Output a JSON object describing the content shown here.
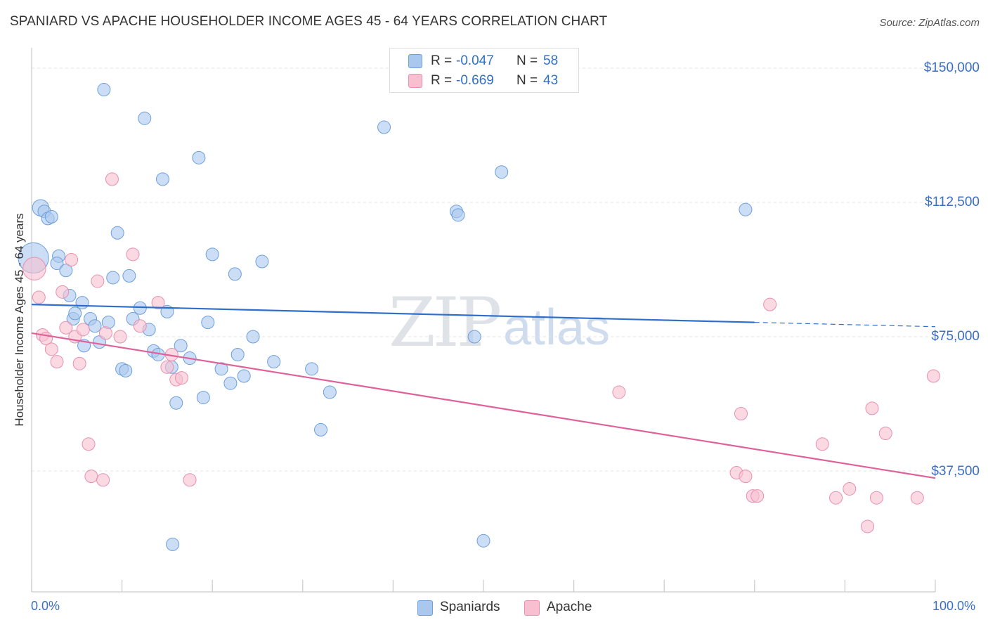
{
  "title": "SPANIARD VS APACHE HOUSEHOLDER INCOME AGES 45 - 64 YEARS CORRELATION CHART",
  "source": "Source: ZipAtlas.com",
  "watermark": {
    "zip": "ZIP",
    "atlas": "atlas"
  },
  "colors": {
    "spaniards": "#aac8ee",
    "spaniards_stroke": "#6c9fdc",
    "spaniards_line": "#2f6fcc",
    "apache": "#f7bfd0",
    "apache_stroke": "#e98fb0",
    "apache_line": "#e0609a",
    "axis_text": "#3a6fc4",
    "grid": "#e3e3e3"
  },
  "legend": {
    "spaniards": {
      "r_label": "R =",
      "r_value": "-0.047",
      "n_label": "N =",
      "n_value": "58"
    },
    "apache": {
      "r_label": "R =",
      "r_value": "-0.669",
      "n_label": "N =",
      "n_value": "43"
    }
  },
  "bottom_legend": {
    "spaniards": "Spaniards",
    "apache": "Apache"
  },
  "chart_data": {
    "type": "scatter",
    "title": "SPANIARD VS APACHE HOUSEHOLDER INCOME AGES 45 - 64 YEARS CORRELATION CHART",
    "xlabel": "",
    "ylabel": "Householder Income Ages 45 - 64 years",
    "xlim": [
      0,
      100
    ],
    "ylim": [
      0,
      155000
    ],
    "x_tick_labels": [
      "0.0%",
      "100.0%"
    ],
    "y_ticks": [
      {
        "value": 150000,
        "label": "$150,000"
      },
      {
        "value": 112500,
        "label": "$112,500"
      },
      {
        "value": 75000,
        "label": "$75,000"
      },
      {
        "value": 37500,
        "label": "$37,500"
      }
    ],
    "series": [
      {
        "name": "Spaniards",
        "trend": {
          "x0": 0,
          "y0": 84000,
          "x1": 80,
          "y1": 79000,
          "x_dash_end": 100,
          "y_dash_end": 77800
        },
        "points": [
          [
            0.2,
            97000,
            2.4
          ],
          [
            1.0,
            111000,
            1.3
          ],
          [
            1.4,
            110000,
            1.0
          ],
          [
            1.8,
            108000,
            1.0
          ],
          [
            2.2,
            108500,
            1.0
          ],
          [
            3.0,
            97500,
            1.0
          ],
          [
            2.8,
            95500,
            1.0
          ],
          [
            3.8,
            93500,
            1.0
          ],
          [
            4.2,
            86500,
            1.0
          ],
          [
            4.6,
            80000,
            1.0
          ],
          [
            4.8,
            81500,
            1.0
          ],
          [
            5.6,
            84500,
            1.0
          ],
          [
            5.8,
            72500,
            1.0
          ],
          [
            6.5,
            80000,
            1.0
          ],
          [
            7.0,
            78000,
            1.0
          ],
          [
            7.5,
            73500,
            1.0
          ],
          [
            8.0,
            144000,
            1.0
          ],
          [
            9.0,
            91500,
            1.0
          ],
          [
            8.5,
            79000,
            1.0
          ],
          [
            9.5,
            104000,
            1.0
          ],
          [
            10.0,
            66000,
            1.0
          ],
          [
            10.4,
            65500,
            1.0
          ],
          [
            10.8,
            92000,
            1.0
          ],
          [
            11.2,
            80000,
            1.0
          ],
          [
            12.0,
            83000,
            1.0
          ],
          [
            12.5,
            136000,
            1.0
          ],
          [
            13.0,
            77000,
            1.0
          ],
          [
            13.5,
            71000,
            1.0
          ],
          [
            14.0,
            70000,
            1.0
          ],
          [
            14.5,
            119000,
            1.0
          ],
          [
            15.0,
            82000,
            1.0
          ],
          [
            15.5,
            66500,
            1.0
          ],
          [
            16.0,
            56500,
            1.0
          ],
          [
            16.5,
            72500,
            1.0
          ],
          [
            17.5,
            69000,
            1.0
          ],
          [
            18.5,
            125000,
            1.0
          ],
          [
            19.0,
            58000,
            1.0
          ],
          [
            19.5,
            79000,
            1.0
          ],
          [
            20.0,
            98000,
            1.0
          ],
          [
            21.0,
            66000,
            1.0
          ],
          [
            22.0,
            62000,
            1.0
          ],
          [
            22.5,
            92500,
            1.0
          ],
          [
            22.8,
            70000,
            1.0
          ],
          [
            23.5,
            64000,
            1.0
          ],
          [
            24.5,
            75000,
            1.0
          ],
          [
            25.5,
            96000,
            1.0
          ],
          [
            26.8,
            68000,
            1.0
          ],
          [
            31.0,
            66000,
            1.0
          ],
          [
            32.0,
            49000,
            1.0
          ],
          [
            33.0,
            59500,
            1.0
          ],
          [
            39.0,
            133500,
            1.0
          ],
          [
            47.0,
            110000,
            1.0
          ],
          [
            47.2,
            109000,
            1.0
          ],
          [
            49.0,
            75000,
            1.0
          ],
          [
            50.0,
            18000,
            1.0
          ],
          [
            52.0,
            121000,
            1.0
          ],
          [
            79.0,
            110500,
            1.0
          ],
          [
            15.6,
            17000,
            1.0
          ]
        ]
      },
      {
        "name": "Apache",
        "trend": {
          "x0": 0,
          "y0": 76000,
          "x1": 100,
          "y1": 35500
        },
        "points": [
          [
            0.3,
            94000,
            1.8
          ],
          [
            0.8,
            86000,
            1.0
          ],
          [
            1.2,
            75500,
            1.0
          ],
          [
            1.6,
            74500,
            1.0
          ],
          [
            2.2,
            71500,
            1.0
          ],
          [
            2.8,
            68000,
            1.0
          ],
          [
            3.4,
            87500,
            1.0
          ],
          [
            3.8,
            77500,
            1.0
          ],
          [
            4.4,
            96500,
            1.0
          ],
          [
            4.8,
            75000,
            1.0
          ],
          [
            5.3,
            67500,
            1.0
          ],
          [
            5.7,
            77000,
            1.0
          ],
          [
            6.3,
            45000,
            1.0
          ],
          [
            6.6,
            36000,
            1.0
          ],
          [
            7.3,
            90500,
            1.0
          ],
          [
            7.9,
            35000,
            1.0
          ],
          [
            8.2,
            76000,
            1.0
          ],
          [
            8.9,
            119000,
            1.0
          ],
          [
            9.8,
            75000,
            1.0
          ],
          [
            11.2,
            98000,
            1.0
          ],
          [
            12.0,
            78000,
            1.0
          ],
          [
            14.0,
            84500,
            1.0
          ],
          [
            15.0,
            66500,
            1.0
          ],
          [
            15.5,
            70000,
            1.0
          ],
          [
            16.0,
            63000,
            1.0
          ],
          [
            16.6,
            63500,
            1.0
          ],
          [
            17.5,
            35000,
            1.0
          ],
          [
            65.0,
            59500,
            1.0
          ],
          [
            78.0,
            37000,
            1.0
          ],
          [
            78.5,
            53500,
            1.0
          ],
          [
            79.0,
            36000,
            1.0
          ],
          [
            79.8,
            30500,
            1.0
          ],
          [
            80.3,
            30500,
            1.0
          ],
          [
            81.7,
            84000,
            1.0
          ],
          [
            87.5,
            45000,
            1.0
          ],
          [
            89.0,
            30000,
            1.0
          ],
          [
            90.5,
            32500,
            1.0
          ],
          [
            92.5,
            22000,
            1.0
          ],
          [
            93.0,
            55000,
            1.0
          ],
          [
            93.5,
            30000,
            1.0
          ],
          [
            94.5,
            48000,
            1.0
          ],
          [
            98.0,
            30000,
            1.0
          ],
          [
            99.8,
            64000,
            1.0
          ]
        ]
      }
    ]
  }
}
